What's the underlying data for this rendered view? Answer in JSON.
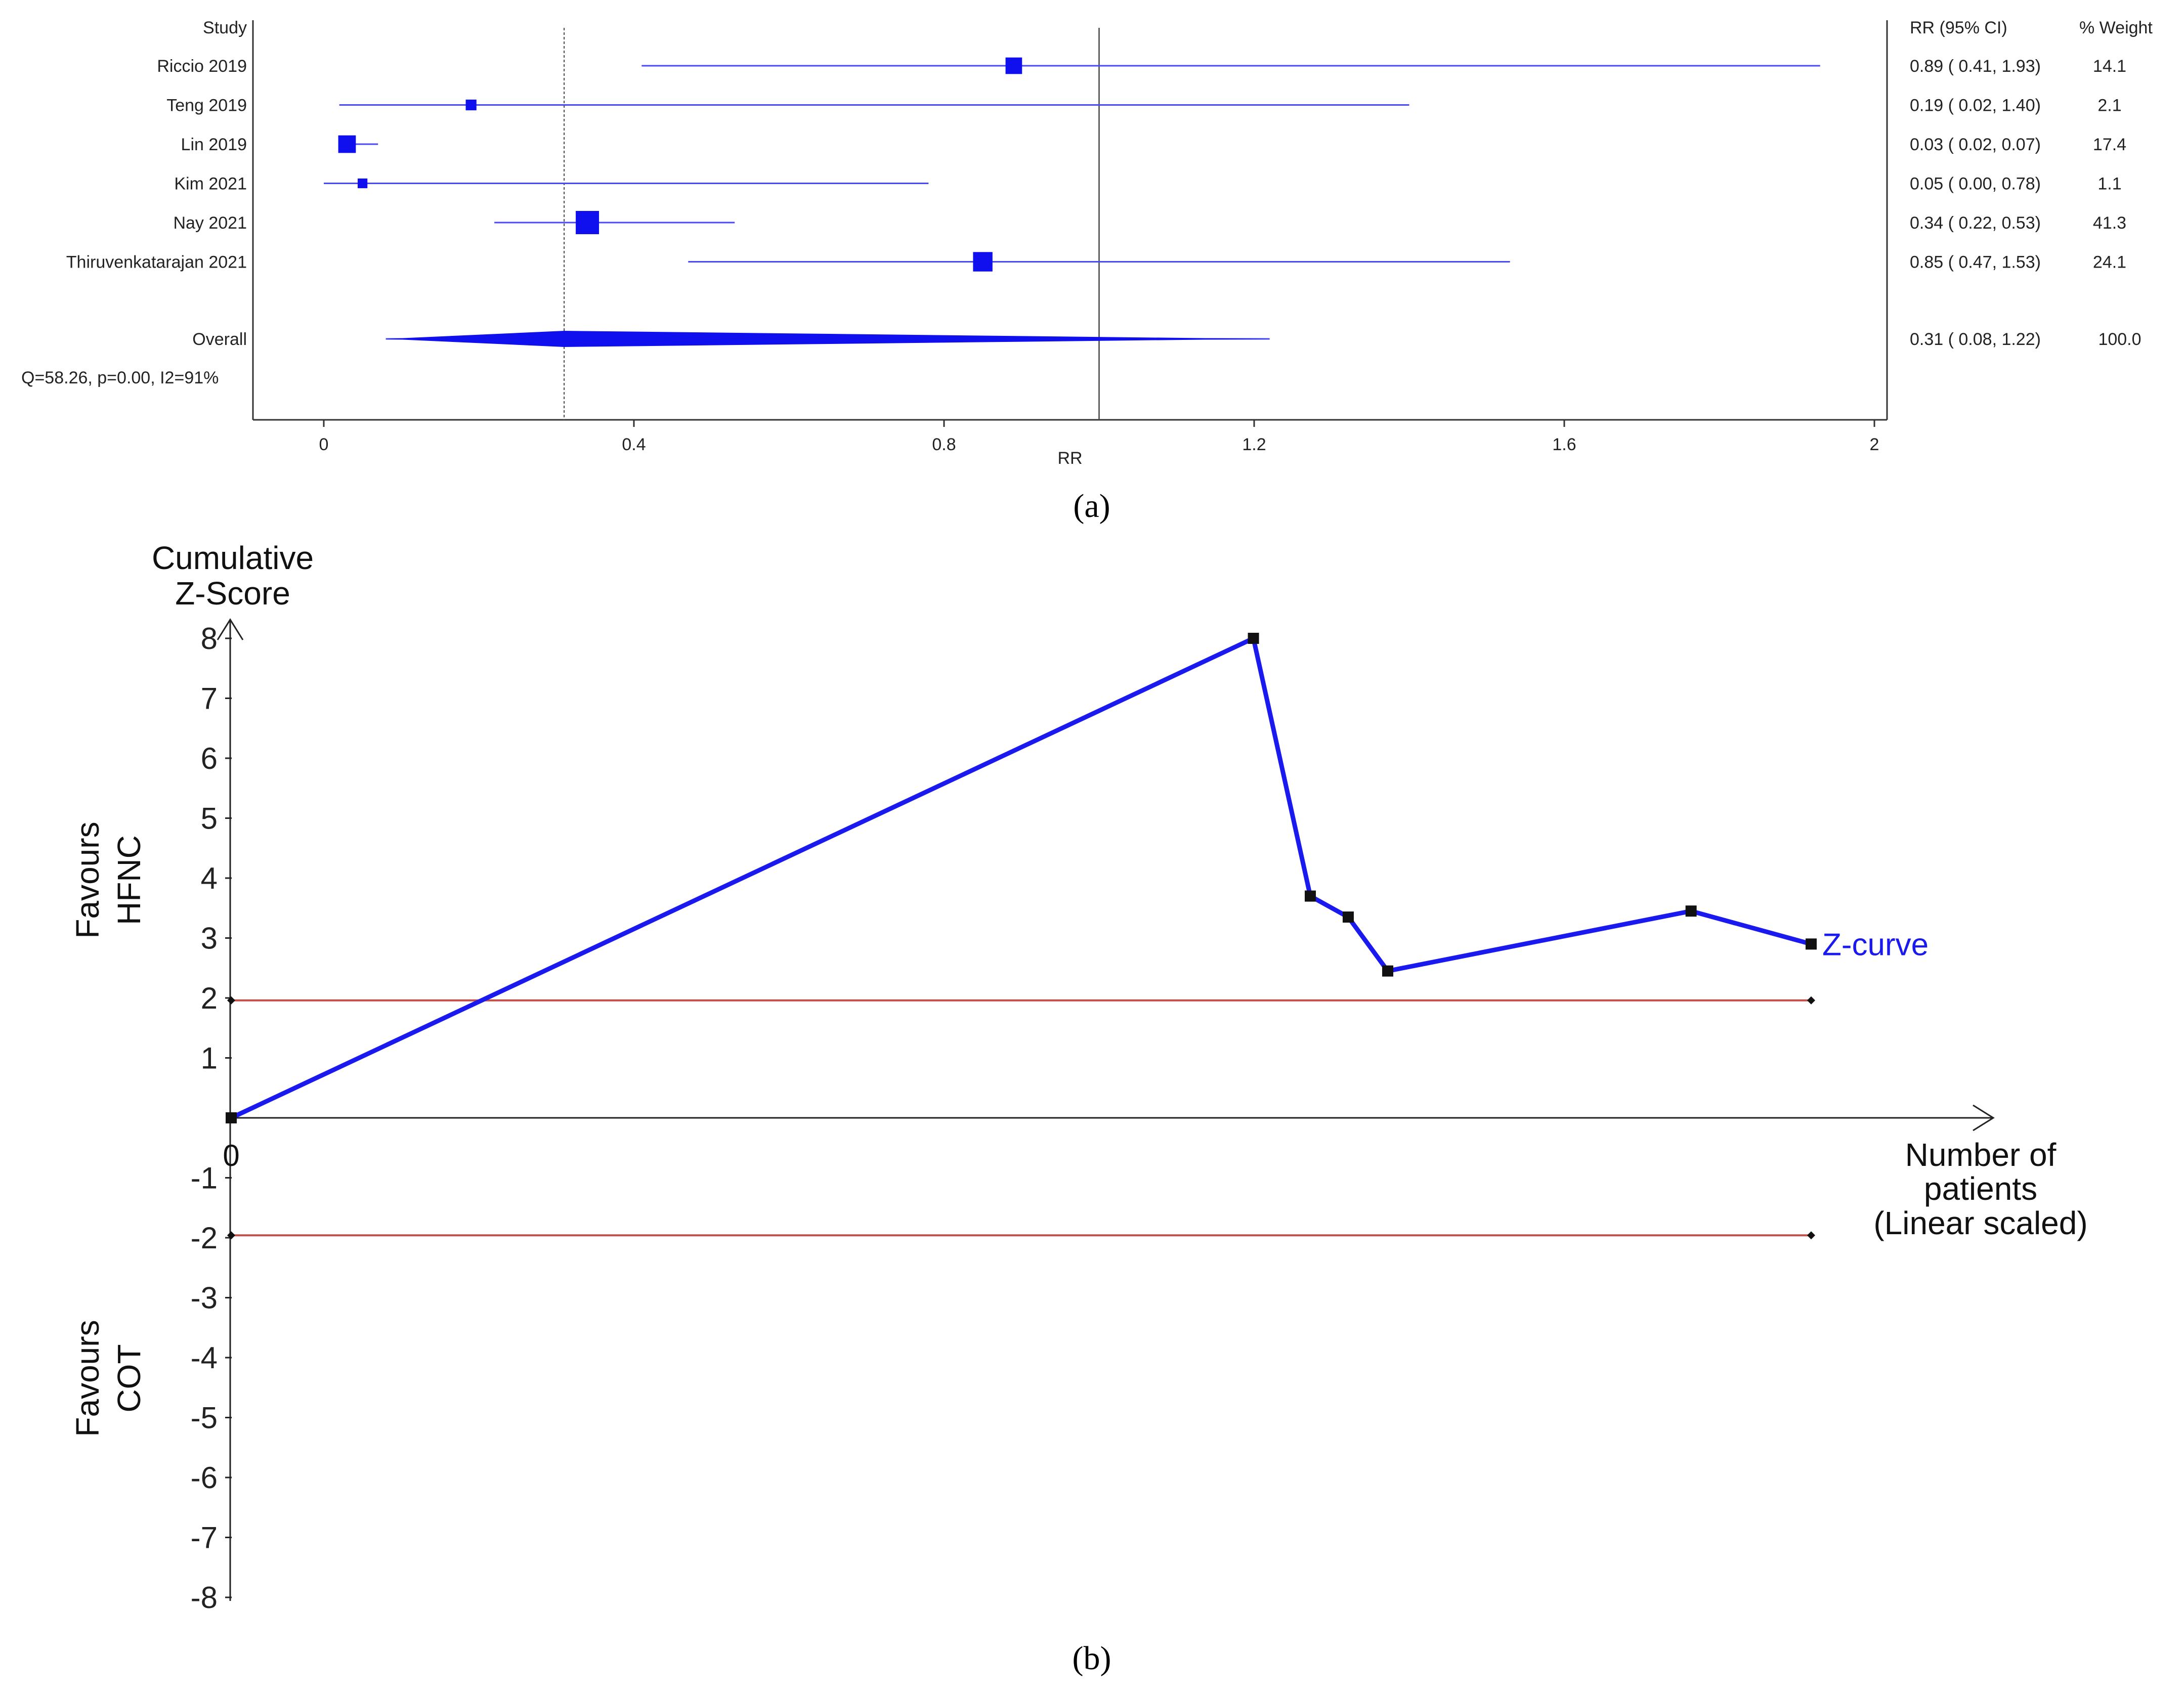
{
  "chart_data": [
    {
      "type": "forest",
      "panel_label": "(a)",
      "title": "",
      "xlabel": "RR",
      "ylabel": "",
      "xlim": [
        0,
        2
      ],
      "xticks": [
        "0",
        "0.4",
        "0.8",
        "1.2",
        "1.6",
        "2"
      ],
      "xtick_values": [
        0,
        0.4,
        0.8,
        1.2,
        1.6,
        2
      ],
      "headers": {
        "study": "Study",
        "ci": "RR (95% CI)",
        "weight": "% Weight"
      },
      "studies": [
        {
          "name": "Riccio 2019",
          "rr": 0.89,
          "lower": 0.41,
          "upper": 1.93,
          "weight": 14.1,
          "ci_label": "0.89  (  0.41,  1.93)",
          "weight_label": "14.1"
        },
        {
          "name": "Teng 2019",
          "rr": 0.19,
          "lower": 0.02,
          "upper": 1.4,
          "weight": 2.1,
          "ci_label": "0.19  (  0.02,  1.40)",
          "weight_label": "2.1"
        },
        {
          "name": "Lin 2019",
          "rr": 0.03,
          "lower": 0.02,
          "upper": 0.07,
          "weight": 17.4,
          "ci_label": "0.03  (  0.02,  0.07)",
          "weight_label": "17.4"
        },
        {
          "name": "Kim 2021",
          "rr": 0.05,
          "lower": 0.0,
          "upper": 0.78,
          "weight": 1.1,
          "ci_label": "0.05  (  0.00,  0.78)",
          "weight_label": "1.1"
        },
        {
          "name": "Nay 2021",
          "rr": 0.34,
          "lower": 0.22,
          "upper": 0.53,
          "weight": 41.3,
          "ci_label": "0.34  (  0.22,  0.53)",
          "weight_label": "41.3"
        },
        {
          "name": "Thiruvenkatarajan 2021",
          "rr": 0.85,
          "lower": 0.47,
          "upper": 1.53,
          "weight": 24.1,
          "ci_label": "0.85  (  0.47,  1.53)",
          "weight_label": "24.1"
        }
      ],
      "overall": {
        "name": "Overall",
        "rr": 0.31,
        "lower": 0.08,
        "upper": 1.22,
        "weight": 100.0,
        "ci_label": "0.31  (  0.08,  1.22)",
        "weight_label": "100.0"
      },
      "heterogeneity": "Q=58.26, p=0.00, I2=91%",
      "reference_lines": [
        1,
        0.31
      ],
      "colors": {
        "marker": "#1010ee",
        "ci_line": "#4a4af5",
        "axis": "#333333"
      }
    },
    {
      "type": "line",
      "panel_label": "(b)",
      "title": "",
      "ylabel_lines": [
        "Cumulative",
        "Z-Score"
      ],
      "xlabel_lines": [
        "Number of",
        "patients",
        "(Linear scaled)"
      ],
      "ylim": [
        -8,
        8
      ],
      "yticks": [
        8,
        7,
        6,
        5,
        4,
        3,
        2,
        1,
        -1,
        -2,
        -3,
        -4,
        -5,
        -6,
        -7,
        -8
      ],
      "ytick_labels": [
        "8",
        "7",
        "6",
        "5",
        "4",
        "3",
        "2",
        "1",
        "-1",
        "-2",
        "-3",
        "-4",
        "-5",
        "-6",
        "-7",
        "-8"
      ],
      "x_origin_label": "0",
      "xlim": [
        0,
        100
      ],
      "side_labels": {
        "upper": [
          "Favours",
          "HFNC"
        ],
        "lower": [
          "Favours",
          "COT"
        ]
      },
      "series": [
        {
          "name": "Z-curve",
          "x": [
            0,
            64.7,
            68.3,
            70.7,
            73.2,
            92.4,
            100
          ],
          "y": [
            0,
            8.0,
            3.7,
            3.35,
            2.45,
            3.45,
            2.9
          ]
        }
      ],
      "boundaries": [
        {
          "y": 1.96,
          "x": [
            0,
            100
          ]
        },
        {
          "y": -1.96,
          "x": [
            0,
            100
          ]
        }
      ],
      "colors": {
        "z_curve": "#1a1aee",
        "boundary": "#c0504d",
        "axis": "#222222"
      }
    }
  ]
}
